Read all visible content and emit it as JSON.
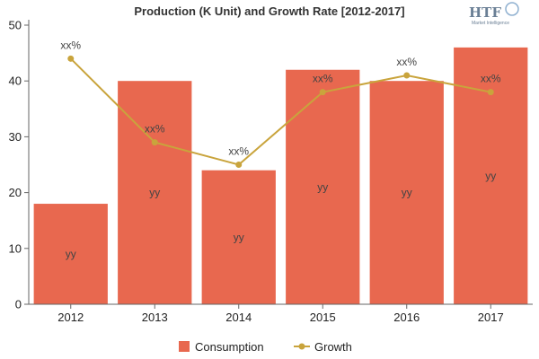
{
  "chart_data": {
    "type": "bar",
    "title": "Production (K Unit) and Growth Rate [2012-2017]",
    "categories": [
      "2012",
      "2013",
      "2014",
      "2015",
      "2016",
      "2017"
    ],
    "series": [
      {
        "name": "Consumption",
        "type": "bar",
        "values": [
          18,
          40,
          24,
          42,
          40,
          46
        ],
        "labels": [
          "yy",
          "yy",
          "yy",
          "yy",
          "yy",
          "yy"
        ],
        "color": "#e8684f"
      },
      {
        "name": "Growth",
        "type": "line",
        "values": [
          44,
          29,
          25,
          38,
          41,
          38
        ],
        "labels": [
          "xx%",
          "xx%",
          "xx%",
          "xx%",
          "xx%",
          "xx%"
        ],
        "color": "#c9a43c"
      }
    ],
    "xlabel": "",
    "ylabel": "",
    "ylim": [
      0,
      50
    ],
    "yticks": [
      0,
      10,
      20,
      30,
      40,
      50
    ],
    "grid": false,
    "legend": "bottom-center"
  },
  "logo": {
    "text": "HTF",
    "subtext": "Market Intelligence"
  }
}
